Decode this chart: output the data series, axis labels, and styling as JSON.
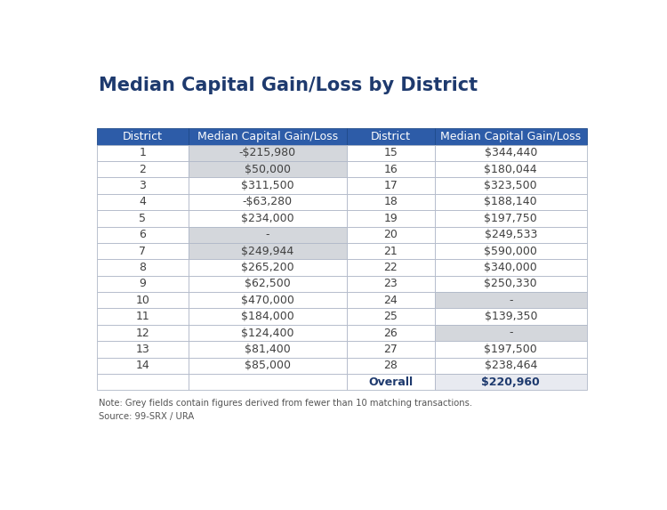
{
  "title": "Median Capital Gain/Loss by District",
  "title_color": "#1e3a6e",
  "title_fontsize": 15,
  "background_color": "#ffffff",
  "header_bg": "#2d5ca8",
  "header_text_color": "#ffffff",
  "header_fontsize": 9,
  "cell_fontsize": 9,
  "row_border_color": "#b0b8c8",
  "grey_cell_bg": "#d4d7dc",
  "overall_right_bg": "#e8eaf0",
  "note_text": "Note: Grey fields contain figures derived from fewer than 10 matching transactions.",
  "source_text": "Source: 99-SRX / URA",
  "col_headers": [
    "District",
    "Median Capital Gain/Loss",
    "District",
    "Median Capital Gain/Loss"
  ],
  "left_data": [
    {
      "district": "1",
      "value": "-$215,980",
      "grey": true
    },
    {
      "district": "2",
      "value": "$50,000",
      "grey": true
    },
    {
      "district": "3",
      "value": "$311,500",
      "grey": false
    },
    {
      "district": "4",
      "value": "-$63,280",
      "grey": false
    },
    {
      "district": "5",
      "value": "$234,000",
      "grey": false
    },
    {
      "district": "6",
      "value": "-",
      "grey": true
    },
    {
      "district": "7",
      "value": "$249,944",
      "grey": true
    },
    {
      "district": "8",
      "value": "$265,200",
      "grey": false
    },
    {
      "district": "9",
      "value": "$62,500",
      "grey": false
    },
    {
      "district": "10",
      "value": "$470,000",
      "grey": false
    },
    {
      "district": "11",
      "value": "$184,000",
      "grey": false
    },
    {
      "district": "12",
      "value": "$124,400",
      "grey": false
    },
    {
      "district": "13",
      "value": "$81,400",
      "grey": false
    },
    {
      "district": "14",
      "value": "$85,000",
      "grey": false
    }
  ],
  "right_data": [
    {
      "district": "15",
      "value": "$344,440",
      "grey": false
    },
    {
      "district": "16",
      "value": "$180,044",
      "grey": false
    },
    {
      "district": "17",
      "value": "$323,500",
      "grey": false
    },
    {
      "district": "18",
      "value": "$188,140",
      "grey": false
    },
    {
      "district": "19",
      "value": "$197,750",
      "grey": false
    },
    {
      "district": "20",
      "value": "$249,533",
      "grey": false
    },
    {
      "district": "21",
      "value": "$590,000",
      "grey": false
    },
    {
      "district": "22",
      "value": "$340,000",
      "grey": false
    },
    {
      "district": "23",
      "value": "$250,330",
      "grey": false
    },
    {
      "district": "24",
      "value": "-",
      "grey": true
    },
    {
      "district": "25",
      "value": "$139,350",
      "grey": false
    },
    {
      "district": "26",
      "value": "-",
      "grey": true
    },
    {
      "district": "27",
      "value": "$197,500",
      "grey": false
    },
    {
      "district": "28",
      "value": "$238,464",
      "grey": false
    }
  ],
  "overall_label": "Overall",
  "overall_value": "$220,960",
  "overall_color": "#1e3a6e"
}
